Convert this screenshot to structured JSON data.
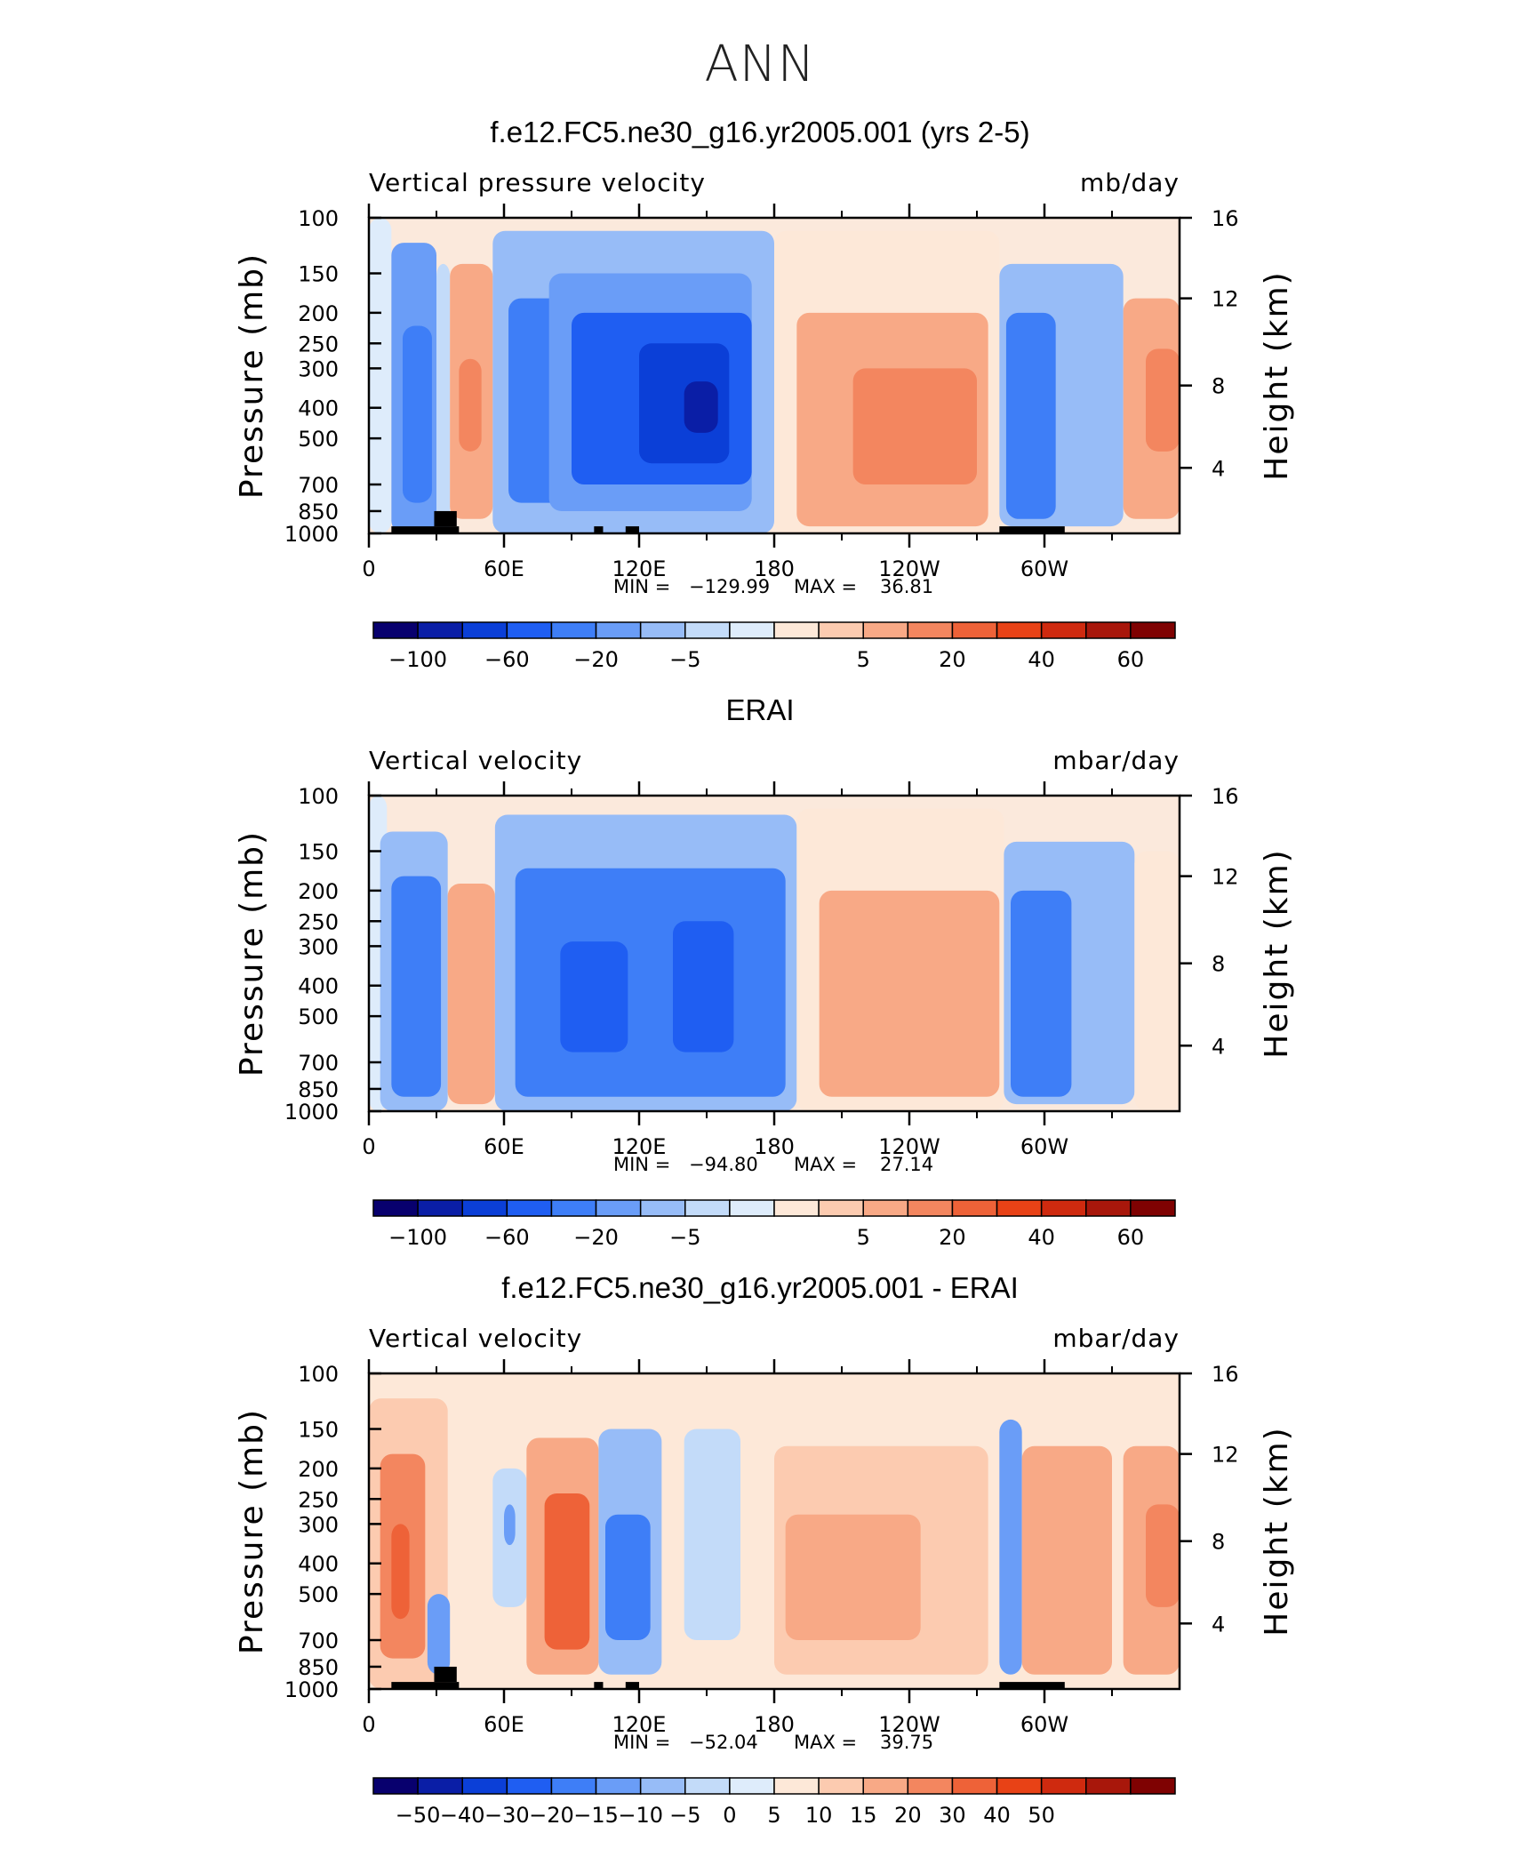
{
  "title": "ANN",
  "colors": {
    "negative": [
      "#08006e",
      "#0a1ea6",
      "#0b3fd7",
      "#1f5ef2",
      "#3e7ef7",
      "#6a9df7",
      "#97bcf7",
      "#c3dbf9",
      "#deecfb"
    ],
    "positive": [
      "#fde8d8",
      "#fccbb0",
      "#f8a986",
      "#f3865f",
      "#ee6238",
      "#e84216",
      "#cf2a0f",
      "#a8170b",
      "#7f0202"
    ]
  },
  "colorbar_main": {
    "labels": [
      "−100",
      "−60",
      "−20",
      "−5",
      "5",
      "20",
      "40",
      "60"
    ]
  },
  "colorbar_diff": {
    "labels": [
      "−50",
      "−40",
      "−30",
      "−20",
      "−15",
      "−10",
      "−5",
      "0",
      "5",
      "10",
      "15",
      "20",
      "30",
      "40",
      "50"
    ]
  },
  "chart_data": [
    {
      "type": "heatmap",
      "title": "f.e12.FC5.ne30_g16.yr2005.001 (yrs 2-5)",
      "left_title": "Vertical pressure velocity",
      "units": "mb/day",
      "ylabel": "Pressure (mb)",
      "y2label": "Height (km)",
      "yticks": [
        "100",
        "150",
        "200",
        "250",
        "300",
        "400",
        "500",
        "700",
        "850",
        "1000"
      ],
      "y2ticks": [
        "16",
        "12",
        "8",
        "4"
      ],
      "xticks": [
        "0",
        "60E",
        "120E",
        "180",
        "120W",
        "60W"
      ],
      "xlim": [
        0,
        360
      ],
      "ylim": [
        1000,
        100
      ],
      "min_label": "MIN =",
      "min_value": "−129.99",
      "max_label": "MAX =",
      "max_value": "36.81",
      "cells": [
        {
          "x0": 0,
          "x1": 10,
          "p0": 100,
          "p1": 1000,
          "level": -1
        },
        {
          "x0": 10,
          "x1": 30,
          "p0": 120,
          "p1": 1000,
          "level": -4
        },
        {
          "x0": 15,
          "x1": 28,
          "p0": 220,
          "p1": 800,
          "level": -5
        },
        {
          "x0": 30,
          "x1": 36,
          "p0": 140,
          "p1": 1000,
          "level": -2
        },
        {
          "x0": 36,
          "x1": 55,
          "p0": 140,
          "p1": 900,
          "level": 3
        },
        {
          "x0": 40,
          "x1": 50,
          "p0": 280,
          "p1": 550,
          "level": 4
        },
        {
          "x0": 55,
          "x1": 180,
          "p0": 110,
          "p1": 1000,
          "level": -3
        },
        {
          "x0": 62,
          "x1": 110,
          "p0": 180,
          "p1": 800,
          "level": -5
        },
        {
          "x0": 80,
          "x1": 170,
          "p0": 150,
          "p1": 850,
          "level": -4
        },
        {
          "x0": 90,
          "x1": 170,
          "p0": 200,
          "p1": 700,
          "level": -6
        },
        {
          "x0": 120,
          "x1": 160,
          "p0": 250,
          "p1": 600,
          "level": -7
        },
        {
          "x0": 140,
          "x1": 155,
          "p0": 330,
          "p1": 480,
          "level": -8
        },
        {
          "x0": 180,
          "x1": 280,
          "p0": 110,
          "p1": 1000,
          "level": 1
        },
        {
          "x0": 190,
          "x1": 275,
          "p0": 200,
          "p1": 950,
          "level": 3
        },
        {
          "x0": 215,
          "x1": 270,
          "p0": 300,
          "p1": 700,
          "level": 4
        },
        {
          "x0": 280,
          "x1": 335,
          "p0": 140,
          "p1": 950,
          "level": -3
        },
        {
          "x0": 283,
          "x1": 305,
          "p0": 200,
          "p1": 900,
          "level": -5
        },
        {
          "x0": 335,
          "x1": 360,
          "p0": 180,
          "p1": 900,
          "level": 3
        },
        {
          "x0": 345,
          "x1": 360,
          "p0": 260,
          "p1": 550,
          "level": 4
        }
      ],
      "land": [
        [
          10,
          40,
          950,
          1000
        ],
        [
          29,
          39,
          850,
          950
        ],
        [
          100,
          104,
          950,
          1000
        ],
        [
          114,
          120,
          950,
          1000
        ],
        [
          280,
          309,
          950,
          1000
        ]
      ]
    },
    {
      "type": "heatmap",
      "title": "ERAI",
      "left_title": "Vertical velocity",
      "units": "mbar/day",
      "ylabel": "Pressure (mb)",
      "y2label": "Height (km)",
      "yticks": [
        "100",
        "150",
        "200",
        "250",
        "300",
        "400",
        "500",
        "700",
        "850",
        "1000"
      ],
      "y2ticks": [
        "16",
        "12",
        "8",
        "4"
      ],
      "xticks": [
        "0",
        "60E",
        "120E",
        "180",
        "120W",
        "60W"
      ],
      "xlim": [
        0,
        360
      ],
      "ylim": [
        1000,
        100
      ],
      "min_label": "MIN =",
      "min_value": "−94.80",
      "max_label": "MAX =",
      "max_value": "27.14",
      "cells": [
        {
          "x0": 0,
          "x1": 8,
          "p0": 100,
          "p1": 1000,
          "level": -1
        },
        {
          "x0": 5,
          "x1": 35,
          "p0": 130,
          "p1": 1000,
          "level": -3
        },
        {
          "x0": 10,
          "x1": 32,
          "p0": 180,
          "p1": 900,
          "level": -5
        },
        {
          "x0": 35,
          "x1": 56,
          "p0": 190,
          "p1": 950,
          "level": 3
        },
        {
          "x0": 56,
          "x1": 190,
          "p0": 115,
          "p1": 1000,
          "level": -3
        },
        {
          "x0": 65,
          "x1": 185,
          "p0": 170,
          "p1": 900,
          "level": -5
        },
        {
          "x0": 85,
          "x1": 115,
          "p0": 290,
          "p1": 650,
          "level": -6
        },
        {
          "x0": 135,
          "x1": 162,
          "p0": 250,
          "p1": 650,
          "level": -6
        },
        {
          "x0": 190,
          "x1": 282,
          "p0": 110,
          "p1": 1000,
          "level": 1
        },
        {
          "x0": 200,
          "x1": 280,
          "p0": 200,
          "p1": 900,
          "level": 3
        },
        {
          "x0": 282,
          "x1": 340,
          "p0": 140,
          "p1": 950,
          "level": -3
        },
        {
          "x0": 285,
          "x1": 312,
          "p0": 200,
          "p1": 900,
          "level": -5
        },
        {
          "x0": 340,
          "x1": 360,
          "p0": 150,
          "p1": 1000,
          "level": 1
        }
      ],
      "land": []
    },
    {
      "type": "heatmap",
      "title": "f.e12.FC5.ne30_g16.yr2005.001 - ERAI",
      "left_title": "Vertical velocity",
      "units": "mbar/day",
      "ylabel": "Pressure (mb)",
      "y2label": "Height (km)",
      "yticks": [
        "100",
        "150",
        "200",
        "250",
        "300",
        "400",
        "500",
        "700",
        "850",
        "1000"
      ],
      "y2ticks": [
        "16",
        "12",
        "8",
        "4"
      ],
      "xticks": [
        "0",
        "60E",
        "120E",
        "180",
        "120W",
        "60W"
      ],
      "xlim": [
        0,
        360
      ],
      "ylim": [
        1000,
        100
      ],
      "min_label": "MIN =",
      "min_value": "−52.04",
      "max_label": "MAX =",
      "max_value": "39.75",
      "cells": [
        {
          "x0": 0,
          "x1": 35,
          "p0": 120,
          "p1": 1000,
          "level": 2
        },
        {
          "x0": 5,
          "x1": 25,
          "p0": 180,
          "p1": 800,
          "level": 4
        },
        {
          "x0": 10,
          "x1": 18,
          "p0": 300,
          "p1": 600,
          "level": 5
        },
        {
          "x0": 26,
          "x1": 36,
          "p0": 500,
          "p1": 900,
          "level": -4
        },
        {
          "x0": 55,
          "x1": 70,
          "p0": 200,
          "p1": 550,
          "level": -2
        },
        {
          "x0": 60,
          "x1": 65,
          "p0": 260,
          "p1": 350,
          "level": -4
        },
        {
          "x0": 70,
          "x1": 102,
          "p0": 160,
          "p1": 900,
          "level": 3
        },
        {
          "x0": 78,
          "x1": 98,
          "p0": 240,
          "p1": 750,
          "level": 5
        },
        {
          "x0": 102,
          "x1": 130,
          "p0": 150,
          "p1": 900,
          "level": -3
        },
        {
          "x0": 105,
          "x1": 125,
          "p0": 280,
          "p1": 700,
          "level": -5
        },
        {
          "x0": 140,
          "x1": 165,
          "p0": 150,
          "p1": 700,
          "level": -2
        },
        {
          "x0": 180,
          "x1": 275,
          "p0": 170,
          "p1": 900,
          "level": 2
        },
        {
          "x0": 185,
          "x1": 245,
          "p0": 280,
          "p1": 700,
          "level": 3
        },
        {
          "x0": 280,
          "x1": 290,
          "p0": 140,
          "p1": 900,
          "level": -4
        },
        {
          "x0": 290,
          "x1": 330,
          "p0": 170,
          "p1": 900,
          "level": 3
        },
        {
          "x0": 335,
          "x1": 360,
          "p0": 170,
          "p1": 900,
          "level": 3
        },
        {
          "x0": 345,
          "x1": 360,
          "p0": 260,
          "p1": 550,
          "level": 4
        }
      ],
      "land": [
        [
          10,
          40,
          950,
          1000
        ],
        [
          29,
          39,
          850,
          950
        ],
        [
          100,
          104,
          950,
          1000
        ],
        [
          114,
          120,
          950,
          1000
        ],
        [
          280,
          309,
          950,
          1000
        ]
      ]
    }
  ]
}
